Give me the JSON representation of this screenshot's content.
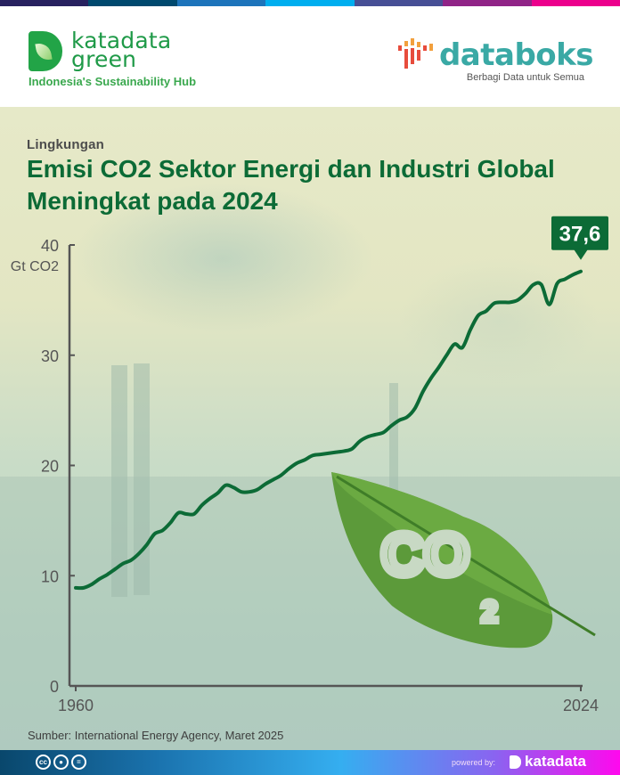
{
  "topbar": {
    "colors": [
      "#27215f",
      "#00496e",
      "#1d74bb",
      "#00aeef",
      "#474f95",
      "#902487",
      "#ec008c"
    ]
  },
  "header": {
    "left_logo": {
      "line1": "katadata",
      "line2": "green",
      "tagline": "Indonesia's Sustainability Hub",
      "icon": "leaf-d-icon"
    },
    "right_logo": {
      "name": "databoks",
      "tagline": "Berbagi Data untuk Semua",
      "icon": "bars-icon"
    }
  },
  "category": "Lingkungan",
  "title": "Emisi CO2 Sektor Energi dan Industri Global Meningkat pada 2024",
  "callout": {
    "value": "37,6",
    "color": "#0c6b36"
  },
  "source": "Sumber: International Energy Agency, Maret 2025",
  "footer": {
    "license_icons": [
      "cc-icon",
      "by-icon",
      "nd-icon"
    ],
    "powered_label": "powered by:",
    "brand": "katadata"
  },
  "colors": {
    "line": "#0c6b36",
    "title": "#0c6b36",
    "axis": "#555555"
  },
  "chart_data": {
    "type": "line",
    "title": "Emisi CO2 Sektor Energi dan Industri Global Meningkat pada 2024",
    "xlabel": "",
    "ylabel": "Gt CO2",
    "ylim": [
      0,
      40
    ],
    "xlim": [
      1960,
      2024
    ],
    "y_ticks": [
      0,
      10,
      20,
      30,
      40
    ],
    "x_tick_labels": [
      "1960",
      "2024"
    ],
    "grid": false,
    "legend": null,
    "annotations": [
      {
        "x": 2024,
        "label": "37,6"
      }
    ],
    "series": [
      {
        "name": "Emisi CO2",
        "x": [
          1960,
          1961,
          1962,
          1963,
          1964,
          1965,
          1966,
          1967,
          1968,
          1969,
          1970,
          1971,
          1972,
          1973,
          1974,
          1975,
          1976,
          1977,
          1978,
          1979,
          1980,
          1981,
          1982,
          1983,
          1984,
          1985,
          1986,
          1987,
          1988,
          1989,
          1990,
          1991,
          1992,
          1993,
          1994,
          1995,
          1996,
          1997,
          1998,
          1999,
          2000,
          2001,
          2002,
          2003,
          2004,
          2005,
          2006,
          2007,
          2008,
          2009,
          2010,
          2011,
          2012,
          2013,
          2014,
          2015,
          2016,
          2017,
          2018,
          2019,
          2020,
          2021,
          2022,
          2023,
          2024
        ],
        "values": [
          8.9,
          8.9,
          9.2,
          9.7,
          10.1,
          10.6,
          11.1,
          11.4,
          12.0,
          12.8,
          13.8,
          14.1,
          14.8,
          15.7,
          15.6,
          15.6,
          16.4,
          17.0,
          17.5,
          18.2,
          18.0,
          17.6,
          17.6,
          17.8,
          18.3,
          18.7,
          19.1,
          19.7,
          20.2,
          20.5,
          20.9,
          21.0,
          21.1,
          21.2,
          21.3,
          21.5,
          22.2,
          22.6,
          22.8,
          23.0,
          23.6,
          24.1,
          24.4,
          25.2,
          26.7,
          27.9,
          28.9,
          30.0,
          31.0,
          30.7,
          32.3,
          33.6,
          34.0,
          34.7,
          34.8,
          34.8,
          35.0,
          35.6,
          36.4,
          36.4,
          34.6,
          36.5,
          36.9,
          37.3,
          37.6
        ]
      }
    ]
  }
}
